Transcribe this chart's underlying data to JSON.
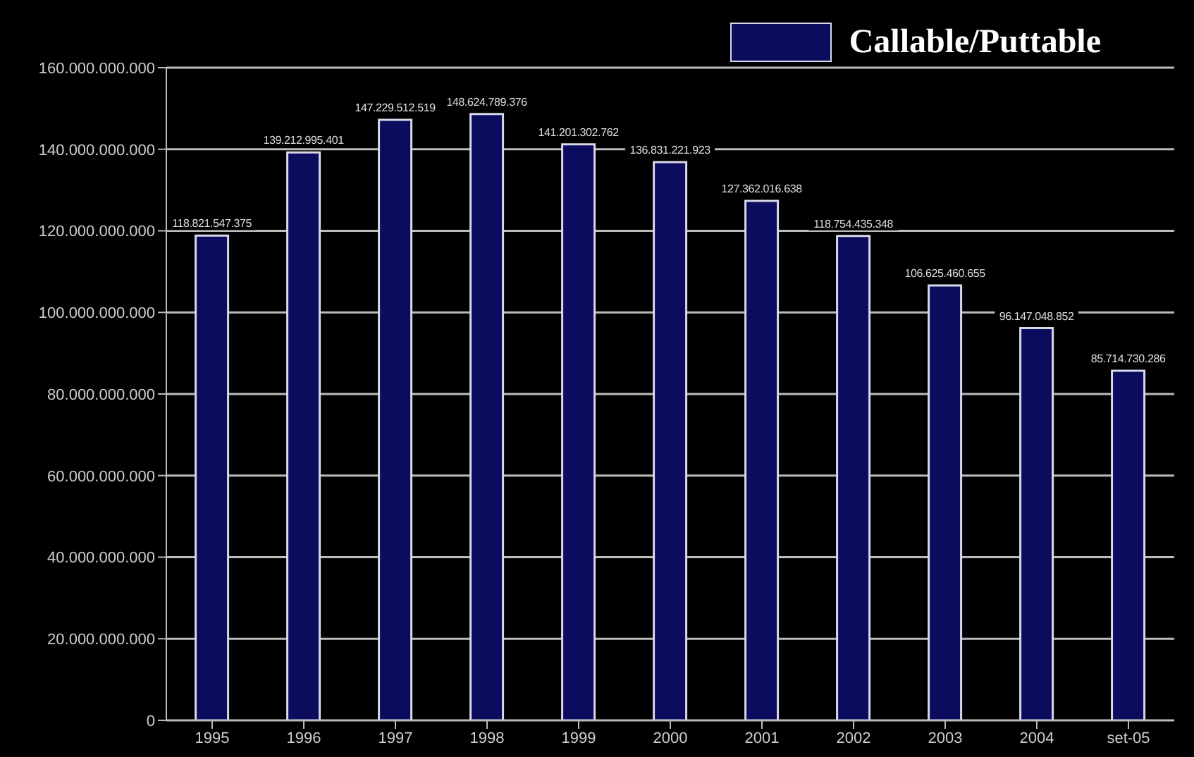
{
  "chart_data": {
    "type": "bar",
    "categories": [
      "1995",
      "1996",
      "1997",
      "1998",
      "1999",
      "2000",
      "2001",
      "2002",
      "2003",
      "2004",
      "set-05"
    ],
    "series": [
      {
        "name": "Callable/Puttable",
        "color": "#0c0c5e",
        "values": [
          118821547375,
          139212995401,
          147229512519,
          148624789376,
          141201302762,
          136831221923,
          127362016638,
          118754435348,
          106625460655,
          96147048852,
          85714730286
        ],
        "value_labels": [
          "118.821.547.375",
          "139.212.995.401",
          "147.229.512.519",
          "148.624.789.376",
          "141.201.302.762",
          "136.831.221.923",
          "127.362.016.638",
          "118.754.435.348",
          "106.625.460.655",
          "96.147.048.852",
          "85.714.730.286"
        ]
      }
    ],
    "ylim": [
      0,
      160000000000
    ],
    "yticks": [
      {
        "value": 0,
        "label": "0"
      },
      {
        "value": 20000000000,
        "label": "20.000.000.000"
      },
      {
        "value": 40000000000,
        "label": "40.000.000.000"
      },
      {
        "value": 60000000000,
        "label": "60.000.000.000"
      },
      {
        "value": 80000000000,
        "label": "80.000.000.000"
      },
      {
        "value": 100000000000,
        "label": "100.000.000.000"
      },
      {
        "value": 120000000000,
        "label": "120.000.000.000"
      },
      {
        "value": 140000000000,
        "label": "140.000.000.000"
      },
      {
        "value": 160000000000,
        "label": "160.000.000.000"
      }
    ],
    "grid": "y",
    "legend": "top right"
  }
}
